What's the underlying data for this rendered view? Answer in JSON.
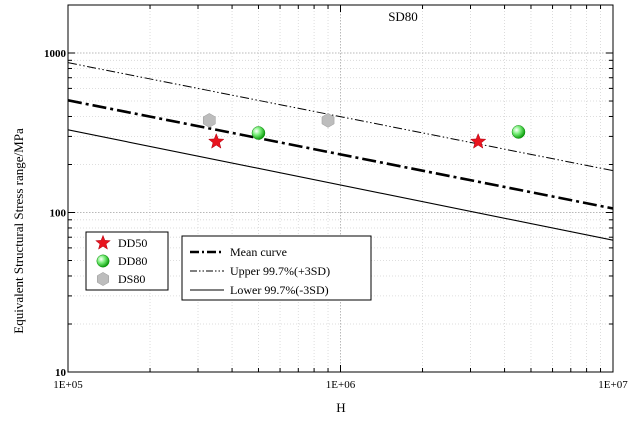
{
  "chart_data": {
    "type": "scatter",
    "title": "SD80",
    "xlabel": "H",
    "ylabel": "Equivalent Structural Stress range/MPa",
    "x_scale": "log",
    "y_scale": "log",
    "xlim": [
      100000,
      10000000
    ],
    "ylim": [
      10,
      2000
    ],
    "x_ticks": [
      {
        "value": 100000,
        "label": "1E+05"
      },
      {
        "value": 1000000,
        "label": "1E+06"
      },
      {
        "value": 10000000,
        "label": "1E+07"
      }
    ],
    "y_ticks": [
      {
        "value": 10,
        "label": "10"
      },
      {
        "value": 100,
        "label": "100"
      },
      {
        "value": 1000,
        "label": "1000"
      }
    ],
    "grid": true,
    "series": [
      {
        "name": "DD50",
        "marker": "star",
        "color": "#e8141e",
        "points": [
          [
            350000,
            278
          ],
          [
            3200000,
            278
          ]
        ]
      },
      {
        "name": "DD80",
        "marker": "sphere",
        "color": "#2fd32f",
        "points": [
          [
            500000,
            315
          ],
          [
            4500000,
            320
          ]
        ]
      },
      {
        "name": "DS80",
        "marker": "hexagon",
        "color": "#bdbdbd",
        "points": [
          [
            330000,
            378
          ],
          [
            900000,
            378
          ]
        ]
      }
    ],
    "lines": [
      {
        "name": "Mean curve",
        "style": "dash-dot-thick",
        "points": [
          [
            100000,
            505
          ],
          [
            10000000,
            106
          ]
        ]
      },
      {
        "name": "Upper 99.7%(+3SD)",
        "style": "dash-dot-dot-thin",
        "points": [
          [
            100000,
            870
          ],
          [
            10000000,
            183
          ]
        ]
      },
      {
        "name": "Lower 99.7%(-3SD)",
        "style": "solid",
        "points": [
          [
            100000,
            330
          ],
          [
            10000000,
            67
          ]
        ]
      }
    ],
    "legend_markers_placement": "bottom-left",
    "legend_lines_placement": "bottom-left"
  }
}
